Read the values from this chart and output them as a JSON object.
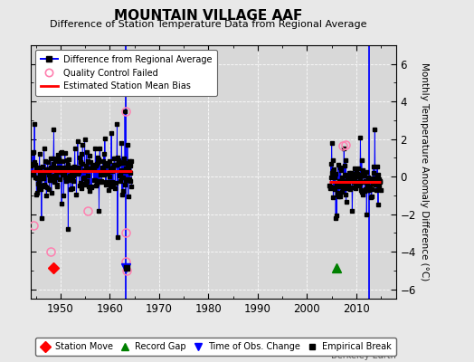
{
  "title": "MOUNTAIN VILLAGE AAF",
  "subtitle": "Difference of Station Temperature Data from Regional Average",
  "ylabel": "Monthly Temperature Anomaly Difference (°C)",
  "credit": "Berkeley Earth",
  "xlim": [
    1944,
    2018
  ],
  "ylim": [
    -6.5,
    7.0
  ],
  "yticks": [
    -6,
    -4,
    -2,
    0,
    2,
    4,
    6
  ],
  "xticks": [
    1950,
    1960,
    1970,
    1980,
    1990,
    2000,
    2010
  ],
  "bg_color": "#e8e8e8",
  "plot_bg_color": "#d8d8d8",
  "segment1_start": 1944.0,
  "segment1_end": 1964.5,
  "segment2_start": 2004.5,
  "segment2_end": 2015.0,
  "bias1": 0.28,
  "bias2": -0.28,
  "vertical_line1_x": 1963.2,
  "vertical_line2_x": 2012.5,
  "station_move_x": 1948.5,
  "station_move_y": -4.85,
  "record_gap_x": 2006.0,
  "record_gap_y": -4.85,
  "time_obs_change_x": 1963.2,
  "time_obs_change_y": -4.85,
  "empirical_break_x": 1963.4,
  "empirical_break_y": -4.85,
  "seed": 42
}
